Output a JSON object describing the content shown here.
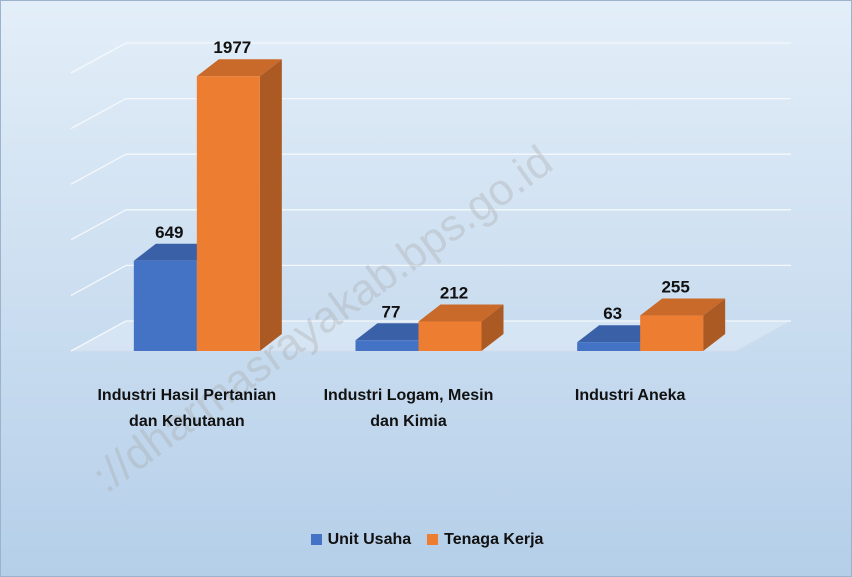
{
  "chart_data": {
    "type": "bar3d",
    "categories": [
      "Industri Hasil Pertanian dan Kehutanan",
      "Industri Logam, Mesin dan Kimia",
      "Industri Aneka"
    ],
    "series": [
      {
        "name": "Unit Usaha",
        "color": "#4472c4",
        "values": [
          649,
          77,
          63
        ]
      },
      {
        "name": "Tenaga Kerja",
        "color": "#ed7d31",
        "values": [
          1977,
          212,
          255
        ]
      }
    ],
    "ylim": [
      0,
      2000
    ],
    "yticks": [
      0,
      400,
      800,
      1200,
      1600,
      2000
    ],
    "grid": true,
    "legend": "bottom",
    "watermark": "://dharmasrayakab.bps.go.id"
  }
}
